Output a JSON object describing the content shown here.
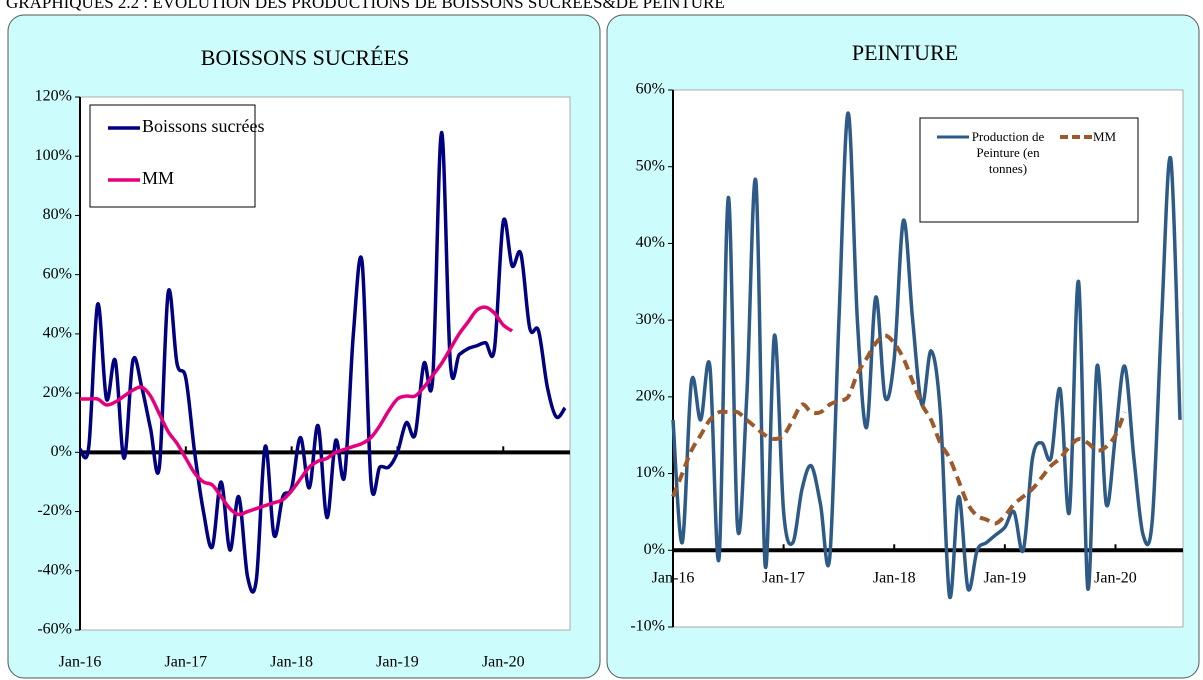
{
  "page_title": "GRAPHIQUES 2.2 : EVOLUTION DES PRODUCTIONS DE BOISSONS SUCREES&DE PEINTURE",
  "chart_data": [
    {
      "type": "line",
      "title": "BOISSONS SUCRÉES",
      "categories": [
        "Jan-16",
        null,
        null,
        null,
        null,
        null,
        null,
        null,
        null,
        null,
        null,
        null,
        "Jan-17",
        null,
        null,
        null,
        null,
        null,
        null,
        null,
        null,
        null,
        null,
        null,
        "Jan-18",
        null,
        null,
        null,
        null,
        null,
        null,
        null,
        null,
        null,
        null,
        null,
        "Jan-19",
        null,
        null,
        null,
        null,
        null,
        null,
        null,
        null,
        null,
        null,
        null,
        "Jan-20",
        null,
        null,
        null,
        null,
        null,
        null,
        null
      ],
      "series": [
        {
          "name": "Boissons sucrées",
          "color": "#000080",
          "line_style": "solid",
          "values": [
            1,
            2,
            50,
            18,
            31,
            -2,
            31,
            22,
            8,
            -5,
            54,
            30,
            25,
            0,
            -20,
            -32,
            -10,
            -33,
            -15,
            -42,
            -43,
            2,
            -28,
            -15,
            -12,
            5,
            -12,
            9,
            -22,
            4,
            -8,
            40,
            64,
            -10,
            -5,
            -5,
            0,
            10,
            6,
            30,
            25,
            108,
            30,
            33,
            35,
            36,
            37,
            35,
            78,
            63,
            67,
            42,
            41,
            22,
            12,
            15
          ]
        },
        {
          "name": "MM",
          "color": "#e6007e",
          "line_style": "solid",
          "values": [
            18,
            18,
            18,
            16,
            17,
            19,
            21,
            22,
            19,
            13,
            7,
            3,
            -2,
            -7,
            -10,
            -11,
            -15,
            -19,
            -21,
            -20,
            -19,
            -18,
            -17,
            -16,
            -13,
            -9,
            -5,
            -3,
            -2,
            0,
            1,
            2,
            3,
            5,
            9,
            14,
            18,
            19,
            19,
            22,
            26,
            30,
            35,
            40,
            44,
            48,
            49,
            47,
            43,
            41,
            null,
            null,
            null,
            null,
            null,
            null
          ]
        }
      ],
      "ylim": [
        -60,
        120
      ],
      "yticks": [
        {
          "value": -60,
          "label": "-60%"
        },
        {
          "value": -40,
          "label": "-40%"
        },
        {
          "value": -20,
          "label": "-20%"
        },
        {
          "value": 0,
          "label": "0%"
        },
        {
          "value": 20,
          "label": "20%"
        },
        {
          "value": 40,
          "label": "40%"
        },
        {
          "value": 60,
          "label": "60%"
        },
        {
          "value": 80,
          "label": "80%"
        },
        {
          "value": 100,
          "label": "100%"
        },
        {
          "value": 120,
          "label": "120%"
        }
      ],
      "legend": "upper left"
    },
    {
      "type": "line",
      "title": "PEINTURE",
      "categories": [
        "Jan-16",
        null,
        null,
        null,
        null,
        null,
        null,
        null,
        null,
        null,
        null,
        null,
        "Jan-17",
        null,
        null,
        null,
        null,
        null,
        null,
        null,
        null,
        null,
        null,
        null,
        "Jan-18",
        null,
        null,
        null,
        null,
        null,
        null,
        null,
        null,
        null,
        null,
        null,
        "Jan-19",
        null,
        null,
        null,
        null,
        null,
        null,
        null,
        null,
        null,
        null,
        null,
        "Jan-20",
        null,
        null,
        null,
        null,
        null,
        null,
        null
      ],
      "series": [
        {
          "name": "Production de Peinture (en tonnes)",
          "color": "#2e5a87",
          "line_style": "solid",
          "values": [
            17,
            1,
            22,
            17,
            24,
            -1,
            46,
            3,
            20,
            48,
            -2,
            28,
            5,
            1,
            8,
            11,
            6,
            -1,
            30,
            57,
            30,
            16,
            33,
            20,
            25,
            43,
            30,
            19,
            26,
            18,
            -6,
            7,
            -5,
            0,
            1,
            2,
            3,
            5,
            0,
            12,
            14,
            12,
            21,
            5,
            35,
            -5,
            24,
            6,
            15,
            24,
            12,
            2,
            4,
            30,
            51,
            17
          ]
        },
        {
          "name": "MM",
          "color": "#9c5a2c",
          "line_style": "dashed",
          "values": [
            7,
            10,
            13,
            15,
            17,
            18,
            18,
            18,
            17,
            16,
            15,
            14.5,
            15,
            17,
            19,
            18,
            18,
            19,
            19.5,
            20,
            23,
            25,
            27,
            28,
            27,
            25,
            22,
            19,
            17,
            14,
            12,
            9,
            6,
            4.5,
            4,
            3.5,
            4.5,
            6,
            7,
            8,
            9.5,
            11,
            12,
            13.5,
            14.5,
            14,
            13,
            13.5,
            15,
            18,
            null,
            null,
            null,
            null,
            null,
            null
          ]
        }
      ],
      "ylim": [
        -10,
        60
      ],
      "yticks": [
        {
          "value": -10,
          "label": "-10%"
        },
        {
          "value": 0,
          "label": "0%"
        },
        {
          "value": 10,
          "label": "10%"
        },
        {
          "value": 20,
          "label": "20%"
        },
        {
          "value": 30,
          "label": "30%"
        },
        {
          "value": 40,
          "label": "40%"
        },
        {
          "value": 50,
          "label": "50%"
        },
        {
          "value": 60,
          "label": "60%"
        }
      ],
      "legend": "upper right"
    }
  ]
}
